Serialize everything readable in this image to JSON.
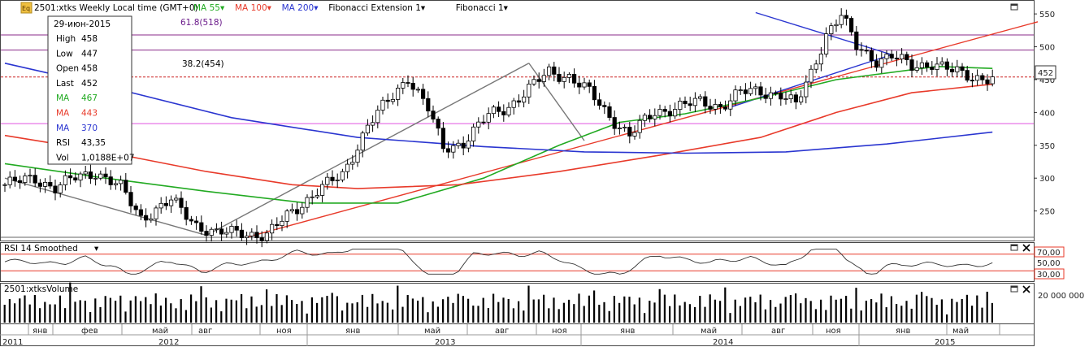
{
  "header": {
    "badge": "Eq",
    "instrument": "2501:xtks Weekly Local time (GMT+0)",
    "ind": [
      {
        "label": "MA 55",
        "color": "#22aa22"
      },
      {
        "label": "MA 100",
        "color": "#e83a2a"
      },
      {
        "label": "MA 200",
        "color": "#2a35d0"
      },
      {
        "label": "Fibonacci Extension 1",
        "color": "#000000"
      },
      {
        "label": "Fibonacci 1",
        "color": "#000000"
      }
    ]
  },
  "info": {
    "date": "29-июн-2015",
    "rows": [
      {
        "k": "High",
        "v": "458",
        "color": "#000000"
      },
      {
        "k": "Low",
        "v": "447",
        "color": "#000000"
      },
      {
        "k": "Open",
        "v": "458",
        "color": "#000000"
      },
      {
        "k": "Last",
        "v": "452",
        "color": "#000000"
      },
      {
        "k": "MA",
        "v": "467",
        "color": "#22aa22"
      },
      {
        "k": "MA",
        "v": "443",
        "color": "#e83a2a"
      },
      {
        "k": "MA",
        "v": "370",
        "color": "#2a35d0"
      },
      {
        "k": "RSI",
        "v": "43,35",
        "color": "#000000"
      },
      {
        "k": "Vol",
        "v": "1,0188E+07",
        "color": "#000000"
      }
    ]
  },
  "fib": {
    "l618": "61.8(518)",
    "l382": "38.2(454)"
  },
  "last_price": "452",
  "rsi_panel": {
    "title": "RSI 14 Smoothed",
    "upper": "70,00",
    "mid": "50,00",
    "lower": "30,00"
  },
  "vol_panel": {
    "title": "2501:xtksVolume",
    "tick": "20 000 000"
  },
  "chart_data": {
    "type": "candlestick",
    "price_ticks": [
      250,
      300,
      350,
      400,
      450,
      500,
      550
    ],
    "ylim": [
      205,
      565
    ],
    "weeks": 174,
    "x_months": [
      "янв",
      "фев",
      "май",
      "авг",
      "ноя",
      "янв",
      "май",
      "авг",
      "ноя",
      "янв",
      "май",
      "авг",
      "ноя",
      "янв",
      "май"
    ],
    "x_years": [
      "2011",
      "2012",
      "2013",
      "2014",
      "2015"
    ],
    "anchors": [
      [
        0,
        290
      ],
      [
        6,
        300
      ],
      [
        10,
        285
      ],
      [
        14,
        300
      ],
      [
        18,
        310
      ],
      [
        23,
        285
      ],
      [
        27,
        240
      ],
      [
        33,
        265
      ],
      [
        38,
        230
      ],
      [
        42,
        215
      ],
      [
        47,
        218
      ],
      [
        52,
        212
      ],
      [
        57,
        250
      ],
      [
        62,
        280
      ],
      [
        67,
        305
      ],
      [
        72,
        380
      ],
      [
        77,
        425
      ],
      [
        80,
        455
      ],
      [
        84,
        405
      ],
      [
        87,
        345
      ],
      [
        91,
        355
      ],
      [
        96,
        395
      ],
      [
        100,
        410
      ],
      [
        104,
        435
      ],
      [
        108,
        462
      ],
      [
        112,
        455
      ],
      [
        116,
        430
      ],
      [
        120,
        395
      ],
      [
        124,
        365
      ],
      [
        129,
        400
      ],
      [
        134,
        410
      ],
      [
        138,
        415
      ],
      [
        142,
        410
      ],
      [
        146,
        430
      ],
      [
        150,
        432
      ],
      [
        154,
        428
      ],
      [
        157,
        410
      ],
      [
        160,
        460
      ],
      [
        163,
        520
      ],
      [
        166,
        548
      ],
      [
        169,
        500
      ],
      [
        173,
        480
      ],
      [
        176,
        485
      ],
      [
        180,
        470
      ],
      [
        184,
        476
      ],
      [
        188,
        462
      ],
      [
        192,
        455
      ],
      [
        196,
        452
      ]
    ],
    "ma55": [
      [
        0,
        322
      ],
      [
        20,
        300
      ],
      [
        40,
        280
      ],
      [
        60,
        262
      ],
      [
        78,
        262
      ],
      [
        95,
        300
      ],
      [
        110,
        350
      ],
      [
        122,
        385
      ],
      [
        135,
        398
      ],
      [
        150,
        422
      ],
      [
        165,
        450
      ],
      [
        185,
        470
      ],
      [
        196,
        467
      ]
    ],
    "ma100": [
      [
        0,
        365
      ],
      [
        20,
        340
      ],
      [
        40,
        310
      ],
      [
        57,
        290
      ],
      [
        70,
        284
      ],
      [
        90,
        290
      ],
      [
        110,
        310
      ],
      [
        130,
        335
      ],
      [
        150,
        362
      ],
      [
        165,
        400
      ],
      [
        180,
        430
      ],
      [
        196,
        443
      ]
    ],
    "ma200": [
      [
        0,
        475
      ],
      [
        20,
        440
      ],
      [
        45,
        392
      ],
      [
        70,
        362
      ],
      [
        95,
        348
      ],
      [
        115,
        340
      ],
      [
        135,
        338
      ],
      [
        155,
        340
      ],
      [
        175,
        352
      ],
      [
        196,
        370
      ]
    ],
    "trendlines": [
      {
        "color": "#e83a2a",
        "p": [
          [
            48,
            210
          ],
          [
            205,
            538
          ]
        ]
      },
      {
        "color": "#2a35d0",
        "p": [
          [
            149,
            552
          ],
          [
            176,
            488
          ]
        ]
      },
      {
        "color": "#2a35d0",
        "p": [
          [
            144,
            408
          ],
          [
            176,
            488
          ]
        ]
      },
      {
        "color": "#777777",
        "p": [
          [
            0,
            300
          ],
          [
            40,
            213
          ]
        ]
      },
      {
        "color": "#777777",
        "p": [
          [
            40,
            213
          ],
          [
            104,
            475
          ]
        ]
      },
      {
        "color": "#777777",
        "p": [
          [
            104,
            475
          ],
          [
            115,
            357
          ]
        ]
      }
    ],
    "hlines": [
      {
        "value": 518,
        "color": "#8a2a8a"
      },
      {
        "value": 495,
        "color": "#8a2a8a"
      },
      {
        "value": 454,
        "color": "#cc2222"
      },
      {
        "value": 383,
        "color": "#e055e0"
      },
      {
        "value": 210,
        "color": "#666666"
      }
    ],
    "rsi_levels": [
      70,
      50,
      30
    ]
  }
}
